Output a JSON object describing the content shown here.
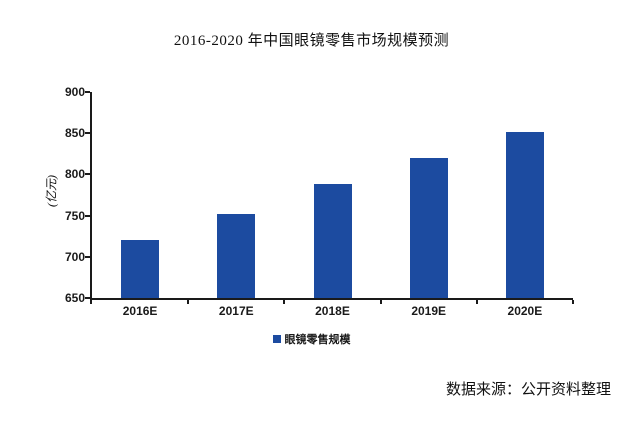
{
  "chart_data": {
    "type": "bar",
    "title": "2016-2020 年中国眼镜零售市场规模预测",
    "ylabel": "(亿元)",
    "categories": [
      "2016E",
      "2017E",
      "2018E",
      "2019E",
      "2020E"
    ],
    "values": [
      720,
      752,
      788,
      820,
      852
    ],
    "series_name": "眼镜零售规模",
    "ylim": [
      650,
      900
    ],
    "yticks": [
      650,
      700,
      750,
      800,
      850,
      900
    ],
    "grid": false,
    "legend_position": "bottom-center"
  },
  "footer": {
    "source_text": "数据来源：公开资料整理"
  },
  "colors": {
    "bar": "#1c4ba0",
    "axis": "#1a1a1a",
    "text": "#1a1a1a",
    "background": "#ffffff"
  }
}
